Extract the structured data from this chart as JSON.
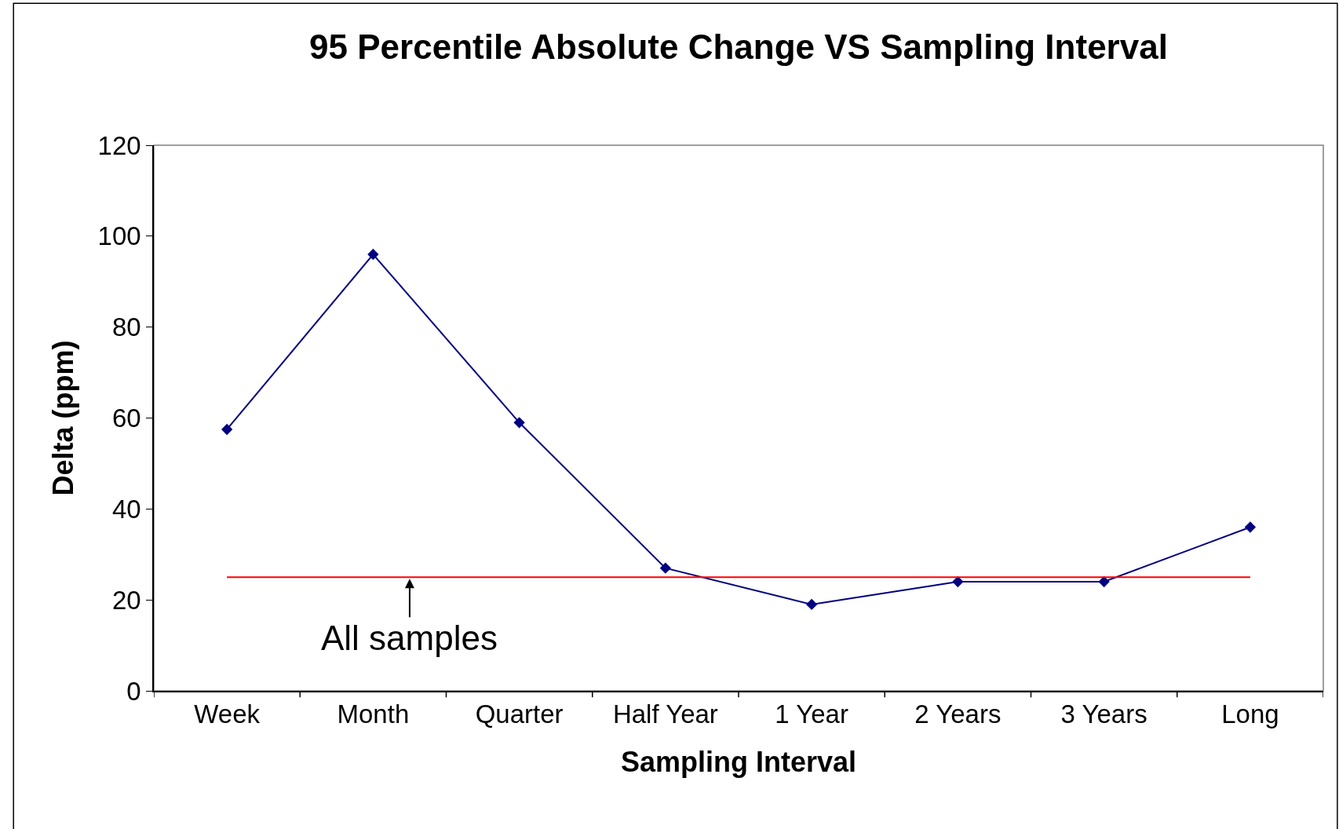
{
  "chart_data": {
    "type": "line",
    "title": "95 Percentile Absolute Change VS Sampling Interval",
    "xlabel": "Sampling Interval",
    "ylabel": "Delta (ppm)",
    "categories": [
      "Week",
      "Month",
      "Quarter",
      "Half Year",
      "1 Year",
      "2 Years",
      "3 Years",
      "Long"
    ],
    "series": [
      {
        "color": "#000080",
        "values": [
          57.5,
          96,
          59,
          27,
          19,
          24,
          24,
          36
        ]
      }
    ],
    "ylim": [
      0,
      120
    ],
    "yticks": [
      0,
      20,
      40,
      60,
      80,
      100,
      120
    ],
    "ref_lines": [
      {
        "axis": "y",
        "value": 25,
        "label": "All samples",
        "color": "#ff0000"
      }
    ],
    "marker": "diamond",
    "grid": false,
    "legend": false
  }
}
